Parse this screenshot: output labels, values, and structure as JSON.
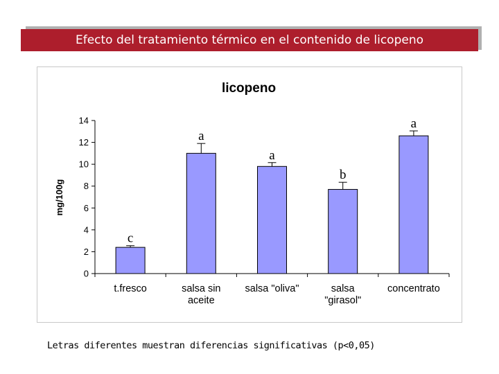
{
  "slide": {
    "title": "Efecto del tratamiento térmico en el contenido de licopeno",
    "footnote": "Letras diferentes muestran diferencias significativas (p<0,05)"
  },
  "colors": {
    "title_bar": "#ad1e2c",
    "bar_fill": "#9999ff",
    "bar_stroke": "#000000"
  },
  "chart_data": {
    "type": "bar",
    "title": "licopeno",
    "xlabel": "",
    "ylabel": "mg/100g",
    "ylim": [
      0,
      14
    ],
    "yticks": [
      0,
      2,
      4,
      6,
      8,
      10,
      12,
      14
    ],
    "grid": false,
    "categories": [
      [
        "t.fresco"
      ],
      [
        "salsa sin",
        "aceite"
      ],
      [
        "salsa \"oliva\""
      ],
      [
        "salsa",
        "\"girasol\""
      ],
      [
        "concentrato"
      ]
    ],
    "values": [
      2.4,
      11.0,
      9.8,
      7.7,
      12.6
    ],
    "error_upper": [
      0.15,
      0.9,
      0.35,
      0.65,
      0.45
    ],
    "significance_letters": [
      "c",
      "a",
      "a",
      "b",
      "a"
    ]
  }
}
